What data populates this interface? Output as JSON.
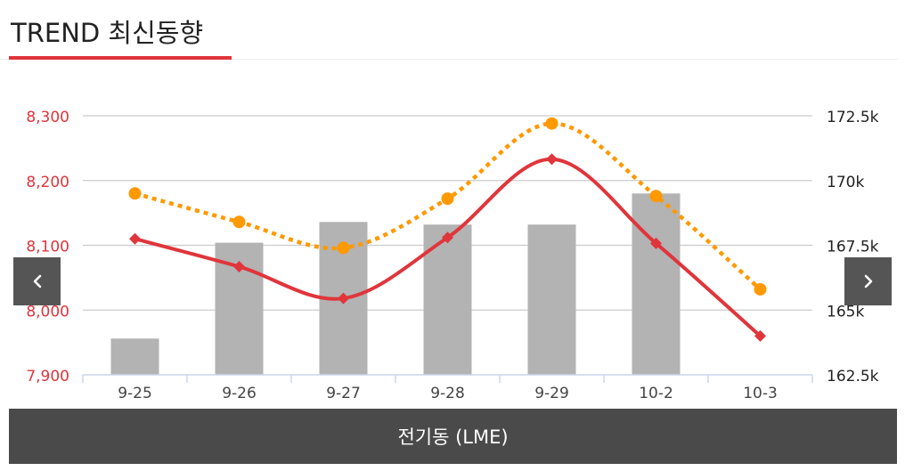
{
  "header": {
    "title": "TREND 최신동향"
  },
  "footer": {
    "label": "전기동 (LME)"
  },
  "nav": {
    "prev_icon": "chevron-left-icon",
    "next_icon": "chevron-right-icon"
  },
  "colors": {
    "accent": "#e0353b",
    "bar": "#b3b3b3",
    "line_left": "#e0353b",
    "line_right": "#ff9900",
    "nav_bg": "#555555",
    "footer_bg": "#4a4a4a"
  },
  "chart_data": {
    "type": "bar",
    "categories": [
      "9-25",
      "9-26",
      "9-27",
      "9-28",
      "9-29",
      "10-2",
      "10-3"
    ],
    "series": [
      {
        "type": "bar",
        "axis": "right",
        "values": [
          163.9,
          167.6,
          168.4,
          168.3,
          168.3,
          169.5,
          null
        ]
      },
      {
        "type": "line",
        "axis": "left",
        "color": "#e0353b",
        "marker": "diamond",
        "dash": "solid",
        "values": [
          8110,
          8067,
          8018,
          8112,
          8233,
          8103,
          7960
        ]
      },
      {
        "type": "line",
        "axis": "right",
        "color": "#ff9900",
        "marker": "circle",
        "dash": "dotted",
        "values": [
          169.5,
          168.4,
          167.4,
          169.3,
          172.2,
          169.4,
          165.8
        ]
      }
    ],
    "y_left": {
      "ylim": [
        7900,
        8300
      ],
      "ticks": [
        "7,900",
        "8,000",
        "8,100",
        "8,200",
        "8,300"
      ],
      "color": "#e0353b"
    },
    "y_right": {
      "ylim": [
        162.5,
        172.5
      ],
      "ticks": [
        "162.5k",
        "165k",
        "167.5k",
        "170k",
        "172.5k"
      ],
      "color": "#222222"
    },
    "grid": true,
    "legend": "none"
  }
}
